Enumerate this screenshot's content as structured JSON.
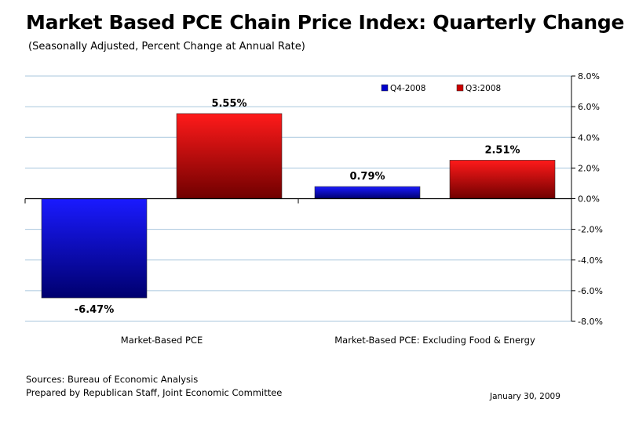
{
  "chart_data": {
    "type": "bar",
    "title": "Market Based PCE Chain Price Index:  Quarterly Change",
    "subtitle": "(Seasonally Adjusted, Percent Change at Annual Rate)",
    "categories": [
      "Market-Based PCE",
      "Market-Based PCE: Excluding Food & Energy"
    ],
    "series": [
      {
        "name": "Q4-2008",
        "values": [
          -6.47,
          0.79
        ],
        "labels": [
          "-6.47%",
          "0.79%"
        ],
        "color": "#0000cc"
      },
      {
        "name": "Q3:2008",
        "values": [
          5.55,
          2.51
        ],
        "labels": [
          "5.55%",
          "2.51%"
        ],
        "color": "#cc0000"
      }
    ],
    "ylim": [
      -8,
      8
    ],
    "yticks": [
      8,
      6,
      4,
      2,
      0,
      -2,
      -4,
      -6,
      -8
    ],
    "ytick_labels": [
      "8.0%",
      "6.0%",
      "4.0%",
      "2.0%",
      "0.0%",
      "-2.0%",
      "-4.0%",
      "-6.0%",
      "-8.0%"
    ],
    "grid": true,
    "legend": "top-right",
    "xlabel": "",
    "ylabel": ""
  },
  "footer": {
    "source": "Sources: Bureau of Economic Analysis",
    "prepared": "Prepared by Republican Staff, Joint Economic Committee",
    "date": "January 30, 2009"
  }
}
